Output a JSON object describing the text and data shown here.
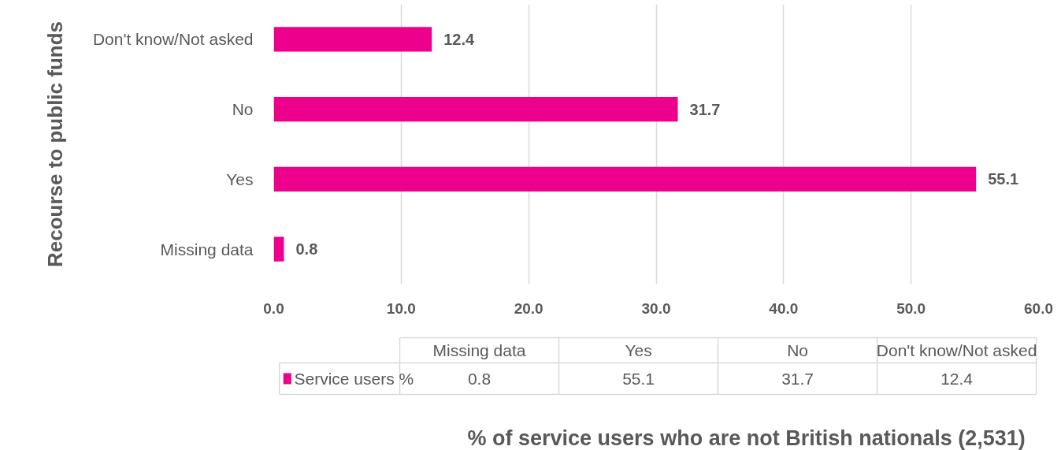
{
  "chart_data": {
    "type": "bar",
    "orientation": "horizontal",
    "categories": [
      "Don't know/Not asked",
      "No",
      "Yes",
      "Missing data"
    ],
    "series": [
      {
        "name": "Service users %",
        "color": "#ec008c",
        "values": [
          12.4,
          31.7,
          55.1,
          0.8
        ],
        "value_labels": [
          "12.4",
          "31.7",
          "55.1",
          "0.8"
        ]
      }
    ],
    "xlim": [
      0,
      60
    ],
    "xticks": [
      {
        "value": 0,
        "label": "0.0"
      },
      {
        "value": 10,
        "label": "10.0"
      },
      {
        "value": 20,
        "label": "20.0"
      },
      {
        "value": 30,
        "label": "30.0"
      },
      {
        "value": 40,
        "label": "40.0"
      },
      {
        "value": 50,
        "label": "50.0"
      },
      {
        "value": 60,
        "label": "60.0"
      }
    ],
    "annotations": [
      "% of service users who are not British nationals (2,531)"
    ],
    "ylabel": "Recourse to public funds",
    "grid": "x",
    "legend": "bottom"
  }
}
